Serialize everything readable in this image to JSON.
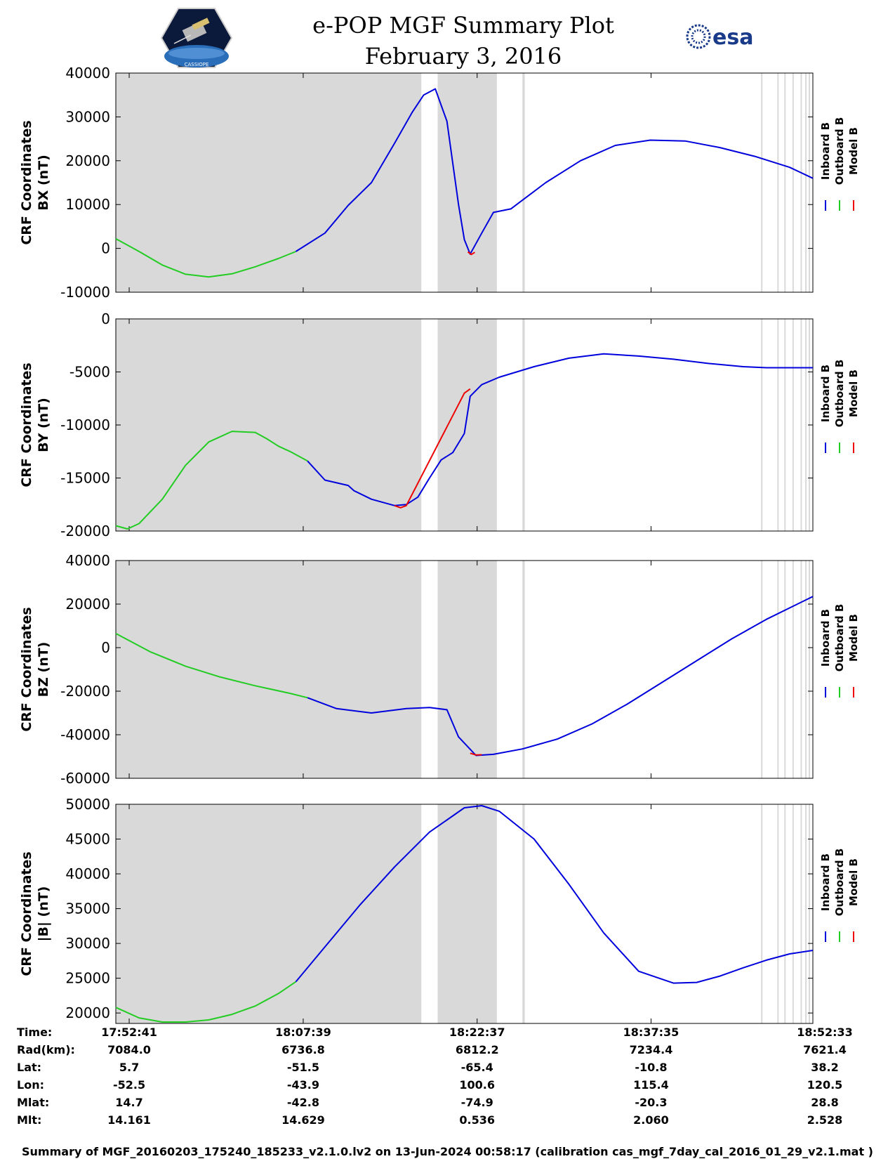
{
  "header": {
    "title": "e-POP MGF Summary Plot",
    "date": "February 3, 2016",
    "left_logo": "e-POP CASSIOPE satellite mission badge",
    "left_logo_text": "CASSIOPE",
    "right_logo": "esa",
    "right_logo_icon": "esa-globe-icon"
  },
  "colors": {
    "inboard": "#0000dd",
    "outboard": "#22cc22",
    "model": "#ee0000",
    "shade": "#d9d9d9"
  },
  "chart_data": [
    {
      "type": "line",
      "ylabel_line1": "CRF Coordinates",
      "ylabel_line2": "BX (nT)",
      "ylim": [
        -10000,
        40000
      ],
      "yticks": [
        -10000,
        0,
        10000,
        20000,
        30000,
        40000
      ],
      "legend": [
        "Inboard B",
        "Outboard B",
        "Model B"
      ],
      "legend_placement": "right",
      "series": [
        {
          "name": "Outboard B",
          "color_key": "outboard",
          "x": [
            0,
            2,
            4,
            6,
            8,
            10,
            12,
            14,
            15.5
          ],
          "y": [
            2200,
            -700,
            -3800,
            -5900,
            -6500,
            -5800,
            -4200,
            -2300,
            -700
          ]
        },
        {
          "name": "Inboard B",
          "color_key": "inboard",
          "x": [
            15.5,
            18,
            20,
            22,
            24,
            25.5,
            26.5,
            27.5,
            28.5,
            29.5,
            30,
            30.5,
            31.5,
            32.5,
            34,
            37,
            40,
            43,
            46,
            49,
            52,
            55,
            58,
            60
          ],
          "y": [
            -700,
            3500,
            9800,
            15000,
            24000,
            31000,
            35000,
            36400,
            29000,
            10000,
            2000,
            -1300,
            3500,
            8200,
            9000,
            15000,
            20000,
            23500,
            24700,
            24500,
            23000,
            21000,
            18500,
            16000
          ]
        },
        {
          "name": "Model B",
          "color_key": "model",
          "x": [
            30.3,
            30.6,
            30.9
          ],
          "y": [
            -800,
            -1400,
            -900
          ]
        }
      ]
    },
    {
      "type": "line",
      "ylabel_line1": "CRF Coordinates",
      "ylabel_line2": "BY (nT)",
      "ylim": [
        -20000,
        0
      ],
      "yticks": [
        -20000,
        -15000,
        -10000,
        -5000,
        0
      ],
      "legend": [
        "Inboard B",
        "Outboard B",
        "Model B"
      ],
      "legend_placement": "right",
      "series": [
        {
          "name": "Outboard B",
          "color_key": "outboard",
          "x": [
            0,
            1,
            2,
            4,
            6,
            8,
            10,
            12,
            13,
            14,
            15,
            16.5
          ],
          "y": [
            -19500,
            -19800,
            -19300,
            -17000,
            -13800,
            -11600,
            -10600,
            -10700,
            -11300,
            -12000,
            -12500,
            -13400
          ]
        },
        {
          "name": "Inboard B",
          "color_key": "inboard",
          "x": [
            16.5,
            18,
            20,
            20.5,
            22,
            24,
            25,
            26,
            27,
            28,
            29,
            30,
            30.5,
            31.5,
            33,
            36,
            39,
            42,
            45,
            48,
            51,
            54,
            56,
            58,
            60
          ],
          "y": [
            -13400,
            -15200,
            -15700,
            -16200,
            -17000,
            -17600,
            -17500,
            -16800,
            -15000,
            -13300,
            -12600,
            -10800,
            -7300,
            -6200,
            -5500,
            -4500,
            -3700,
            -3300,
            -3500,
            -3800,
            -4200,
            -4500,
            -4600,
            -4600,
            -4600
          ]
        },
        {
          "name": "Model B",
          "color_key": "model",
          "x": [
            24,
            24.5,
            25,
            30,
            30.5
          ],
          "y": [
            -17600,
            -17800,
            -17600,
            -7000,
            -6600
          ]
        }
      ]
    },
    {
      "type": "line",
      "ylabel_line1": "CRF Coordinates",
      "ylabel_line2": "BZ (nT)",
      "ylim": [
        -60000,
        40000
      ],
      "yticks": [
        -60000,
        -40000,
        -20000,
        0,
        20000,
        40000
      ],
      "legend": [
        "Inboard B",
        "Outboard B",
        "Model B"
      ],
      "legend_placement": "right",
      "series": [
        {
          "name": "Outboard B",
          "color_key": "outboard",
          "x": [
            0,
            3,
            6,
            9,
            12,
            15,
            16.5
          ],
          "y": [
            6500,
            -2000,
            -8500,
            -13500,
            -17500,
            -21000,
            -23000
          ]
        },
        {
          "name": "Inboard B",
          "color_key": "inboard",
          "x": [
            16.5,
            19,
            22,
            25,
            27,
            28.5,
            29.5,
            31,
            32.5,
            35,
            38,
            41,
            44,
            47,
            50,
            53,
            56,
            60
          ],
          "y": [
            -23000,
            -28000,
            -30000,
            -28000,
            -27500,
            -28500,
            -41000,
            -49500,
            -49000,
            -46500,
            -42000,
            -35000,
            -26000,
            -16000,
            -6000,
            4000,
            13000,
            23500
          ]
        },
        {
          "name": "Model B",
          "color_key": "model",
          "x": [
            30.5,
            31,
            31.5
          ],
          "y": [
            -48500,
            -49300,
            -49200
          ]
        }
      ]
    },
    {
      "type": "line",
      "ylabel_line1": "CRF Coordinates",
      "ylabel_line2": "|B| (nT)",
      "ylim": [
        18500,
        50000
      ],
      "yticks": [
        20000,
        25000,
        30000,
        35000,
        40000,
        45000,
        50000
      ],
      "legend": [
        "Inboard B",
        "Outboard B",
        "Model B"
      ],
      "legend_placement": "right",
      "series": [
        {
          "name": "Outboard B",
          "color_key": "outboard",
          "x": [
            0,
            2,
            4,
            6,
            8,
            10,
            12,
            14,
            15.5
          ],
          "y": [
            20800,
            19300,
            18700,
            18700,
            19000,
            19800,
            21000,
            22800,
            24500
          ]
        },
        {
          "name": "Inboard B",
          "color_key": "inboard",
          "x": [
            15.5,
            18,
            21,
            24,
            27,
            30,
            31.5,
            33,
            36,
            39,
            42,
            45,
            48,
            50,
            52,
            54,
            56,
            58,
            60
          ],
          "y": [
            24500,
            29500,
            35500,
            41000,
            46000,
            49500,
            49800,
            49000,
            45000,
            38500,
            31500,
            26000,
            24300,
            24400,
            25300,
            26500,
            27600,
            28500,
            29000
          ]
        }
      ]
    }
  ],
  "shading": {
    "bands": [
      [
        0,
        26.3
      ],
      [
        27.7,
        32.8
      ],
      [
        35.0,
        35.2
      ]
    ],
    "lines": [
      55.6,
      57.0,
      57.6,
      58.3,
      59.0,
      59.4,
      59.7
    ]
  },
  "x_axis": {
    "ticks": [
      1.15,
      16.13,
      31.1,
      46.07,
      61.05
    ],
    "xlim": [
      0,
      60
    ]
  },
  "ephemeris": {
    "labels": [
      "Time:",
      "Rad(km):",
      "Lat:",
      "Lon:",
      "Mlat:",
      "Mlt:"
    ],
    "columns": [
      [
        "17:52:41",
        "7084.0",
        "5.7",
        "-52.5",
        "14.7",
        "14.161"
      ],
      [
        "18:07:39",
        "6736.8",
        "-51.5",
        "-43.9",
        "-42.8",
        "14.629"
      ],
      [
        "18:22:37",
        "6812.2",
        "-65.4",
        "100.6",
        "-74.9",
        "0.536"
      ],
      [
        "18:37:35",
        "7234.4",
        "-10.8",
        "115.4",
        "-20.3",
        "2.060"
      ],
      [
        "18:52:33",
        "7621.4",
        "38.2",
        "120.5",
        "28.8",
        "2.528"
      ]
    ]
  },
  "footer": "Summary of MGF_20160203_175240_185233_v2.1.0.lv2 on 13-Jun-2024 00:58:17 (calibration cas_mgf_7day_cal_2016_01_29_v2.1.mat )"
}
